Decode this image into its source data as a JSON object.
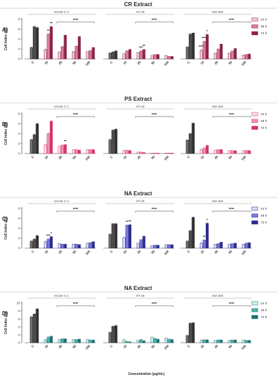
{
  "figure": {
    "xlabel": "Concentration (μg/mL)",
    "ylabel": "Cell Index (CI)",
    "legend": [
      "24 h",
      "48 h",
      "72 h"
    ]
  },
  "chart_data": [
    {
      "type": "bar",
      "label": "A)",
      "title": "CR Extract",
      "ylim": [
        0,
        8
      ],
      "yticks": [
        0,
        2,
        4,
        6,
        8
      ],
      "color24": "#f4c7d9",
      "color48": "#d980a6",
      "color72": "#8c2343",
      "groups": [
        {
          "title": "HGUE-C-1",
          "C": [
            2.3,
            6.5,
            6.3
          ],
          "doses": {
            "10": [
              1.9,
              5.0,
              6.5
            ],
            "25": [
              1.4,
              2.5,
              4.8
            ],
            "50": [
              1.5,
              2.6,
              4.5
            ],
            "100": [
              1.5,
              1.7,
              2.3
            ]
          }
        },
        {
          "title": "HT-29",
          "C": [
            1.2,
            1.4,
            1.6
          ],
          "doses": {
            "10": [
              1.0,
              1.6,
              1.9
            ],
            "25": [
              1.3,
              1.6,
              1.9
            ],
            "50": [
              0.7,
              0.9,
              0.9
            ],
            "100": [
              0.7,
              0.5,
              0.5
            ]
          }
        },
        {
          "title": "SW-480",
          "C": [
            2.4,
            5.0,
            5.2
          ],
          "doses": {
            "10": [
              1.8,
              3.5,
              4.9
            ],
            "25": [
              1.2,
              2.0,
              3.0
            ],
            "50": [
              1.2,
              1.6,
              2.1
            ],
            "100": [
              0.8,
              0.9,
              1.0
            ]
          }
        }
      ],
      "annotations": [
        {
          "group": 0,
          "dose": "10",
          "text": "**"
        },
        {
          "group": 0,
          "dose": "10",
          "text": "**"
        },
        {
          "group": 0,
          "text": "****"
        },
        {
          "group": 1,
          "dose": "25",
          "text": "***"
        },
        {
          "group": 1,
          "dose": "25",
          "text": "**"
        },
        {
          "group": 1,
          "text": "****"
        },
        {
          "group": 2,
          "dose": "10",
          "text": "****"
        },
        {
          "group": 2,
          "dose": "10",
          "text": "****"
        },
        {
          "group": 2,
          "dose": "10",
          "text": "*"
        },
        {
          "group": 2,
          "text": "****"
        }
      ]
    },
    {
      "type": "bar",
      "label": "B)",
      "title": "PS Extract",
      "ylim": [
        0,
        8
      ],
      "yticks": [
        0,
        2,
        4,
        6,
        8
      ],
      "color24": "#fbdde7",
      "color48": "#ee94b5",
      "color72": "#d6336b",
      "groups": [
        {
          "title": "HGUE-C-1",
          "C": [
            2.8,
            3.8,
            6.0
          ],
          "doses": {
            "10": [
              1.8,
              4.0,
              6.5
            ],
            "25": [
              1.5,
              1.7,
              1.8
            ],
            "50": [
              0.8,
              0.8,
              0.7
            ],
            "100": [
              0.8,
              0.8,
              0.8
            ]
          }
        },
        {
          "title": "HT-29",
          "C": [
            2.8,
            4.7,
            4.9
          ],
          "doses": {
            "10": [
              0.6,
              0.6,
              0.6
            ],
            "25": [
              0.3,
              0.3,
              0.2
            ],
            "50": [
              0.1,
              0.1,
              0.1
            ],
            "100": [
              0.1,
              0.1,
              0.1
            ]
          }
        },
        {
          "title": "SW-480",
          "C": [
            2.7,
            4.0,
            6.1
          ],
          "doses": {
            "10": [
              0.8,
              1.1,
              1.6
            ],
            "25": [
              0.7,
              0.8,
              0.8
            ],
            "50": [
              0.6,
              0.6,
              0.6
            ],
            "100": [
              0.6,
              0.6,
              0.6
            ]
          }
        }
      ],
      "annotations": [
        {
          "group": 0,
          "dose": "25",
          "text": "**"
        },
        {
          "group": 0,
          "text": "****"
        },
        {
          "group": 1,
          "text": "****"
        },
        {
          "group": 2,
          "text": "****"
        }
      ]
    },
    {
      "type": "bar",
      "label": "C)",
      "title": "NA Extract",
      "ylim": [
        0,
        8
      ],
      "yticks": [
        0,
        2,
        4,
        6,
        8
      ],
      "color24": "#d8d8f4",
      "color48": "#7a7ad9",
      "color72": "#2b2b8f",
      "groups": [
        {
          "title": "HGUE-C-1",
          "C": [
            1.4,
            1.8,
            2.5
          ],
          "doses": {
            "10": [
              1.3,
              1.8,
              2.3
            ],
            "25": [
              0.9,
              0.8,
              0.8
            ],
            "50": [
              0.8,
              0.8,
              0.7
            ],
            "100": [
              1.0,
              1.1,
              1.3
            ]
          }
        },
        {
          "title": "HT-29",
          "C": [
            2.8,
            4.9,
            4.9
          ],
          "doses": {
            "10": [
              2.1,
              4.6,
              4.7
            ],
            "25": [
              1.0,
              1.7,
              2.4
            ],
            "50": [
              0.5,
              0.6,
              0.6
            ],
            "100": [
              0.7,
              0.7,
              0.7
            ]
          }
        },
        {
          "title": "SW-480",
          "C": [
            1.4,
            3.5,
            6.2
          ],
          "doses": {
            "10": [
              1.0,
              1.6,
              5.0
            ],
            "25": [
              0.8,
              0.9,
              1.2
            ],
            "50": [
              0.8,
              0.9,
              1.0
            ],
            "100": [
              0.8,
              1.0,
              1.1
            ]
          }
        }
      ],
      "annotations": [
        {
          "group": 0,
          "dose": "10",
          "text": "***"
        },
        {
          "group": 0,
          "dose": "10",
          "text": "*"
        },
        {
          "group": 0,
          "text": "****"
        },
        {
          "group": 1,
          "dose": "10",
          "text": "**"
        },
        {
          "group": 1,
          "dose": "10",
          "text": "**"
        },
        {
          "group": 1,
          "text": "****"
        },
        {
          "group": 2,
          "dose": "10",
          "text": "**"
        },
        {
          "group": 2,
          "dose": "10",
          "text": "*"
        },
        {
          "group": 2,
          "text": "****"
        }
      ]
    },
    {
      "type": "bar",
      "label": "D)",
      "title": "NA Extract",
      "ylim": [
        0,
        10
      ],
      "yticks": [
        0,
        2,
        4,
        6,
        8,
        10
      ],
      "color24": "#c9f0ea",
      "color48": "#4fb6a9",
      "color72": "#1e6e72",
      "groups": [
        {
          "title": "HGUE-C-1",
          "C": [
            6.5,
            7.2,
            8.5
          ],
          "doses": {
            "10": [
              0.7,
              1.4,
              1.6
            ],
            "25": [
              0.8,
              1.0,
              1.0
            ],
            "50": [
              0.8,
              0.8,
              0.9
            ],
            "100": [
              0.8,
              0.7,
              0.7
            ]
          }
        },
        {
          "title": "HT-29",
          "C": [
            2.6,
            4.1,
            4.3
          ],
          "doses": {
            "10": [
              0.7,
              0.3,
              0.2
            ],
            "25": [
              0.6,
              0.8,
              0.5
            ],
            "50": [
              1.4,
              1.1,
              0.9
            ],
            "100": [
              1.2,
              0.9,
              0.8
            ]
          }
        },
        {
          "title": "SW-480",
          "C": [
            1.8,
            4.9,
            5.0
          ],
          "doses": {
            "10": [
              0.6,
              0.7,
              0.7
            ],
            "25": [
              0.6,
              0.7,
              0.7
            ],
            "50": [
              0.6,
              0.7,
              0.7
            ],
            "100": [
              0.7,
              0.6,
              0.6
            ]
          }
        }
      ],
      "annotations": [
        {
          "group": 0,
          "text": "****"
        },
        {
          "group": 1,
          "text": "****"
        },
        {
          "group": 2,
          "text": "****"
        }
      ]
    }
  ]
}
